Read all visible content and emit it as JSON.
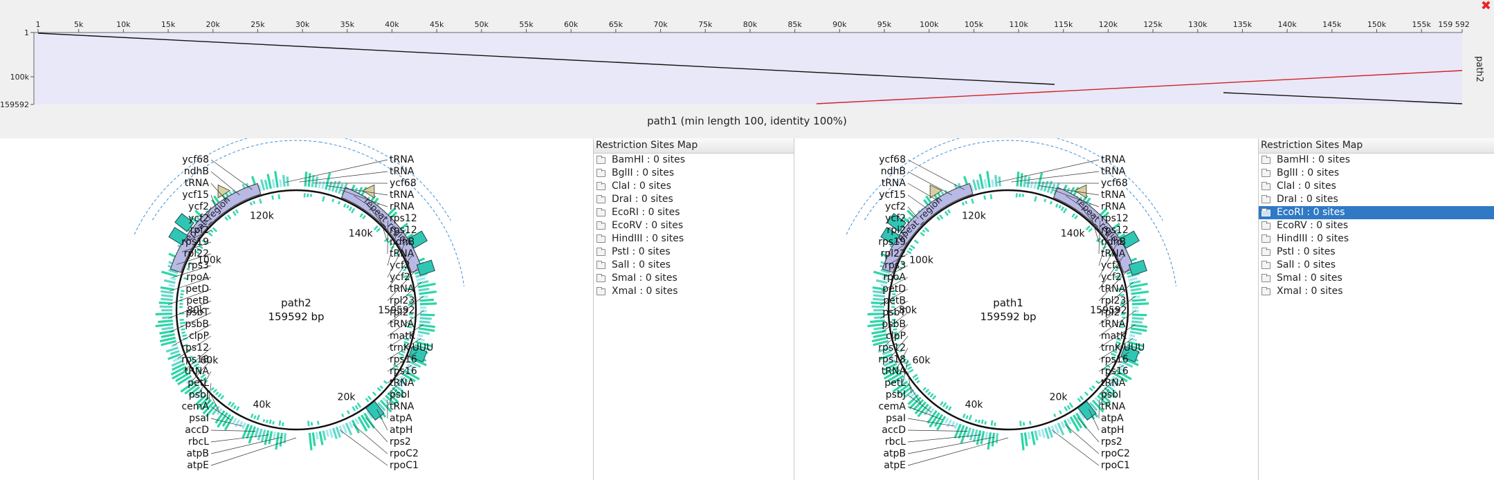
{
  "dotplot": {
    "x_ticks": [
      "1",
      "5k",
      "10k",
      "15k",
      "20k",
      "25k",
      "30k",
      "35k",
      "40k",
      "45k",
      "50k",
      "55k",
      "60k",
      "65k",
      "70k",
      "75k",
      "80k",
      "85k",
      "90k",
      "95k",
      "100k",
      "105k",
      "110k",
      "115k",
      "120k",
      "125k",
      "130k",
      "135k",
      "140k",
      "145k",
      "150k",
      "155k",
      "159 592"
    ],
    "y_ticks": [
      "1",
      "100k",
      "159592"
    ],
    "y_axis_label": "path2",
    "caption": "path1 (min length 100, identity 100%)",
    "close_symbol": "✖",
    "colors": {
      "forward": "#111111",
      "reverse": "#d42020",
      "background": "#e8e8f8"
    }
  },
  "views": [
    {
      "center_name": "path2",
      "center_length": "159592 bp",
      "scale_labels": [
        "120k",
        "140k",
        "159592",
        "20k",
        "40k",
        "60k",
        "80k",
        "100k"
      ],
      "repeat_labels": [
        "repeat_region",
        "repeat_region"
      ],
      "right_genes": [
        "tRNA",
        "tRNA",
        "ycf68",
        "tRNA",
        "rRNA",
        "rps12",
        "rps12",
        "ndhB",
        "tRNA",
        "ycf2",
        "ycf2",
        "tRNA",
        "rpl23",
        "rpl2",
        "tRNA",
        "matK",
        "trnK-UUU",
        "rps16",
        "rps16",
        "tRNA",
        "psbI",
        "tRNA",
        "atpA",
        "atpH",
        "rps2",
        "rpoC2",
        "rpoC1"
      ],
      "left_genes": [
        "ycf68",
        "ndhB",
        "tRNA",
        "ycf15",
        "ycf2",
        "ycf2",
        "rpl2",
        "rps19",
        "rpl22",
        "rps3",
        "rpoA",
        "petD",
        "petB",
        "psbT",
        "psbB",
        "clpP",
        "rps12",
        "rps18",
        "tRNA",
        "petL",
        "psbJ",
        "cemA",
        "psaI",
        "accD",
        "rbcL",
        "atpB",
        "atpE"
      ]
    },
    {
      "center_name": "path1",
      "center_length": "159592 bp",
      "scale_labels": [
        "120k",
        "140k",
        "159592",
        "20k",
        "40k",
        "60k",
        "80k",
        "100k"
      ],
      "repeat_labels": [
        "repeat_region",
        "repeat_region"
      ],
      "right_genes": [
        "tRNA",
        "tRNA",
        "ycf68",
        "tRNA",
        "rRNA",
        "rps12",
        "rps12",
        "ndhB",
        "tRNA",
        "ycf2",
        "ycf2",
        "tRNA",
        "rpl23",
        "rpl2",
        "tRNA",
        "matK",
        "trnK-UUU",
        "rps16",
        "rps16",
        "tRNA",
        "psbI",
        "tRNA",
        "atpA",
        "atpH",
        "rps2",
        "rpoC2",
        "rpoC1"
      ],
      "left_genes": [
        "ycf68",
        "ndhB",
        "tRNA",
        "ycf15",
        "ycf2",
        "ycf2",
        "rpl2",
        "rps19",
        "rpl22",
        "rps3",
        "rpoA",
        "petD",
        "petB",
        "psbT",
        "psbB",
        "clpP",
        "rps12",
        "rps18",
        "tRNA",
        "petL",
        "psbJ",
        "cemA",
        "psaI",
        "accD",
        "rbcL",
        "atpB",
        "atpE"
      ]
    }
  ],
  "restriction_panels": [
    {
      "title": "Restriction Sites Map",
      "items": [
        "BamHI : 0 sites",
        "BglII : 0 sites",
        "ClaI : 0 sites",
        "DraI : 0 sites",
        "EcoRI : 0 sites",
        "EcoRV : 0 sites",
        "HindIII : 0 sites",
        "PstI : 0 sites",
        "SalI : 0 sites",
        "SmaI : 0 sites",
        "XmaI : 0 sites"
      ],
      "selected": -1
    },
    {
      "title": "Restriction Sites Map",
      "items": [
        "BamHI : 0 sites",
        "BglII : 0 sites",
        "ClaI : 0 sites",
        "DraI : 0 sites",
        "EcoRI : 0 sites",
        "EcoRV : 0 sites",
        "HindIII : 0 sites",
        "PstI : 0 sites",
        "SalI : 0 sites",
        "SmaI : 0 sites",
        "XmaI : 0 sites"
      ],
      "selected": 4
    }
  ]
}
